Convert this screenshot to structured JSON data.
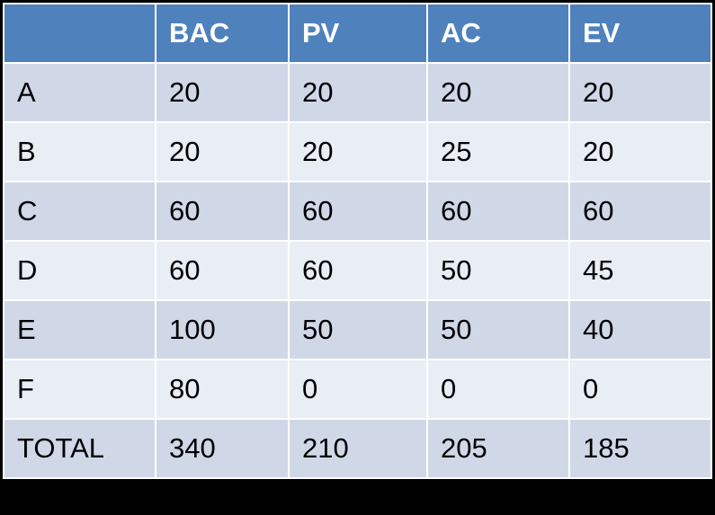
{
  "table": {
    "header": [
      "BAC",
      "PV",
      "AC",
      "EV"
    ],
    "rows": [
      [
        "A",
        20,
        20,
        20,
        20
      ],
      [
        "B",
        20,
        20,
        25,
        20
      ],
      [
        "C",
        60,
        60,
        60,
        60
      ],
      [
        "D",
        60,
        60,
        50,
        45
      ],
      [
        "E",
        100,
        50,
        50,
        40
      ],
      [
        "F",
        80,
        0,
        0,
        0
      ],
      [
        "TOTAL",
        340,
        210,
        205,
        185
      ]
    ]
  }
}
